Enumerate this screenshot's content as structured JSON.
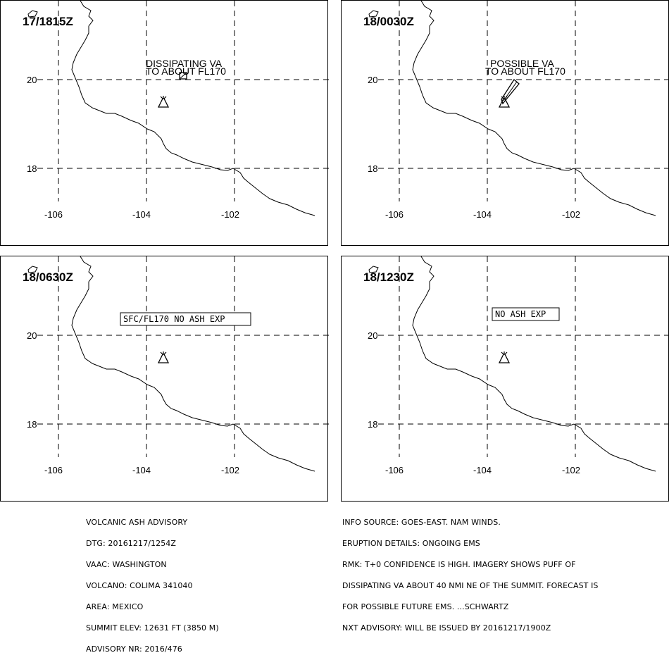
{
  "panels": [
    {
      "time": "17/1815Z",
      "annotation_lines": [
        "DISSIPATING VA",
        "TO ABOUT FL170"
      ],
      "annotation_style": "plain",
      "ash_feature": "small-square"
    },
    {
      "time": "18/0030Z",
      "annotation_lines": [
        "POSSIBLE  VA",
        "TO ABOUT FL170"
      ],
      "annotation_style": "plain",
      "ash_feature": "plume-arrow"
    },
    {
      "time": "18/0630Z",
      "annotation_lines": [
        "SFC/FL170 NO ASH EXP"
      ],
      "annotation_style": "boxed",
      "ash_feature": "none"
    },
    {
      "time": "18/1230Z",
      "annotation_lines": [
        "NO ASH EXP"
      ],
      "annotation_style": "boxed",
      "ash_feature": "none"
    }
  ],
  "map": {
    "lat_labels": [
      "20",
      "18"
    ],
    "lon_labels": [
      "-106",
      "-104",
      "-102"
    ],
    "volcano_icon": "volcano-icon"
  },
  "advisory_left": [
    "VOLCANIC ASH ADVISORY",
    "DTG: 20161217/1254Z",
    "VAAC: WASHINGTON",
    "VOLCANO: COLIMA 341040",
    "AREA: MEXICO",
    "SUMMIT ELEV: 12631 FT (3850 M)",
    "ADVISORY NR: 2016/476"
  ],
  "advisory_right": [
    "INFO SOURCE: GOES-EAST. NAM WINDS.",
    "ERUPTION DETAILS: ONGOING EMS",
    "RMK: T+0 CONFIDENCE IS HIGH. IMAGERY SHOWS PUFF OF",
    "DISSIPATING VA ABOUT 40 NMI NE OF THE SUMMIT. FORECAST IS",
    "FOR POSSIBLE FUTURE EMS. ...SCHWARTZ",
    "NXT ADVISORY: WILL BE ISSUED BY 20161217/1900Z"
  ]
}
